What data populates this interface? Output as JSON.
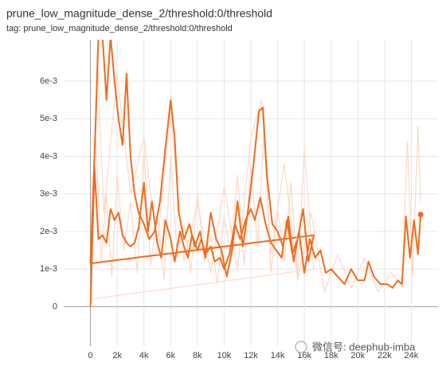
{
  "chart_data": {
    "type": "line",
    "title": "prune_low_magnitude_dense_2/threshold:0/threshold",
    "subtitle": "tag: prune_low_magnitude_dense_2/threshold:0/threshold",
    "watermark": "微信号: deephub-imba",
    "xlim": [
      -2000,
      26000
    ],
    "ylim": [
      -0.00105,
      0.0071
    ],
    "xticks": [
      0,
      {
        "value": 2000,
        "label": "2k"
      },
      {
        "value": 4000,
        "label": "4k"
      },
      {
        "value": 6000,
        "label": "6k"
      },
      {
        "value": 8000,
        "label": "8k"
      },
      {
        "value": 10000,
        "label": "10k"
      },
      {
        "value": 12000,
        "label": "12k"
      },
      {
        "value": 14000,
        "label": "14k"
      },
      {
        "value": 16000,
        "label": "16k"
      },
      {
        "value": 18000,
        "label": "18k"
      },
      {
        "value": 20000,
        "label": "20k"
      },
      {
        "value": 22000,
        "label": "22k"
      },
      {
        "value": 24000,
        "label": "24k"
      }
    ],
    "yticks": [
      0,
      {
        "value": 0.001,
        "label": "1e-3"
      },
      {
        "value": 0.002,
        "label": "2e-3"
      },
      {
        "value": 0.003,
        "label": "3e-3"
      },
      {
        "value": 0.004,
        "label": "4e-3"
      },
      {
        "value": 0.005,
        "label": "5e-3"
      },
      {
        "value": 0.006,
        "label": "6e-3"
      }
    ],
    "grid": true,
    "series": [
      {
        "color": "#fdd9c7",
        "x": [
          0,
          400,
          800,
          1200,
          1600,
          2000,
          2500,
          3000,
          3500,
          4000,
          4500,
          5000,
          5500,
          6000,
          6500,
          7000,
          7500,
          8000,
          8500,
          9000,
          9500,
          10000,
          10500,
          11000,
          11500,
          12000,
          12500,
          13000,
          13500,
          14000,
          14500,
          15000,
          15500,
          16000,
          16700,
          0,
          500,
          1000,
          2000,
          3000,
          4000,
          5000,
          6000,
          7000,
          8000,
          9000,
          10000,
          11000,
          12000,
          12800,
          13500,
          14500,
          15500,
          16500,
          17500,
          18500,
          19500,
          20500,
          21500,
          22500,
          23300,
          23700,
          24100,
          24500,
          24700
        ],
        "values": [
          0,
          0.0045,
          0.0012,
          0.003,
          0.0008,
          0.0035,
          0.0015,
          0.0028,
          0.0009,
          0.0042,
          0.0011,
          0.0025,
          0.0007,
          0.004,
          0.0013,
          0.0022,
          0.0009,
          0.003,
          0.0012,
          0.0019,
          0.0006,
          0.0024,
          0.0014,
          0.0035,
          0.0011,
          0.0038,
          0.0016,
          0.0048,
          0.0009,
          0.0026,
          0.0012,
          0.0033,
          0.0008,
          0.0042,
          0.001,
          0.0002,
          0.0068,
          0.0025,
          0.0062,
          0.003,
          0.0045,
          0.0016,
          0.0052,
          0.0012,
          0.0028,
          0.0009,
          0.0032,
          0.001,
          0.0045,
          0.0055,
          0.0014,
          0.0038,
          0.0007,
          0.0025,
          0.0004,
          0.0014,
          0.0005,
          0.0013,
          0.0004,
          0.0009,
          0.0005,
          0.0044,
          0.0008,
          0.0048,
          0.0028
        ]
      },
      {
        "color": "#f26b1d",
        "x": [
          0,
          300,
          600,
          900,
          1200,
          1500,
          1800,
          2100,
          2400,
          2700,
          3000,
          3300,
          3600,
          4000,
          4300,
          4600,
          5000,
          5300,
          5600,
          6000,
          6300,
          6700,
          7000,
          7300,
          7600,
          8000,
          8300,
          8600,
          9000,
          9300,
          9700,
          10000,
          10400,
          10800,
          11200,
          11600,
          12000,
          12300,
          12700,
          13100,
          13500,
          13900,
          14300,
          14700,
          15100,
          15500,
          15900,
          16300,
          16700,
          0,
          400,
          600,
          900,
          1200,
          1500,
          1800,
          2100,
          2400,
          2700,
          3000,
          3300,
          3600,
          4000,
          4400,
          4800,
          5200,
          5600,
          6000,
          6300,
          6600,
          7000,
          7400,
          7800,
          8200,
          8600,
          9000,
          9400,
          9800,
          10200,
          10600,
          11000,
          11400,
          11800,
          12200,
          12600,
          12900,
          13200,
          13600,
          14000,
          14400,
          14800,
          15200,
          15600,
          16000,
          16400,
          16800,
          17200,
          17600,
          18000,
          18500,
          19000,
          19500,
          20000,
          20500,
          20800,
          21200,
          21700,
          22200,
          22600,
          23000,
          23300,
          23600,
          23900,
          24200,
          24500,
          24700
        ],
        "values": [
          0,
          0.0037,
          0.0018,
          0.0019,
          0.0017,
          0.0026,
          0.0023,
          0.0025,
          0.0019,
          0.0017,
          0.0016,
          0.0017,
          0.0021,
          0.0033,
          0.002,
          0.0028,
          0.0017,
          0.0013,
          0.0023,
          0.0018,
          0.0012,
          0.002,
          0.0016,
          0.0013,
          0.0019,
          0.0015,
          0.0018,
          0.0014,
          0.0016,
          0.0012,
          0.0013,
          0.001,
          0.0014,
          0.0022,
          0.0018,
          0.0023,
          0.0026,
          0.0023,
          0.0029,
          0.0022,
          0.0017,
          0.0015,
          0.0013,
          0.0023,
          0.0014,
          0.0018,
          0.0026,
          0.0012,
          0.0019,
          0.00115,
          0.005,
          0.0072,
          0.0072,
          0.0055,
          0.0072,
          0.006,
          0.005,
          0.0043,
          0.0062,
          0.004,
          0.003,
          0.0025,
          0.0022,
          0.0018,
          0.002,
          0.0028,
          0.0042,
          0.0055,
          0.0045,
          0.0025,
          0.0018,
          0.0022,
          0.0016,
          0.002,
          0.0013,
          0.0025,
          0.0018,
          0.0015,
          0.0008,
          0.0015,
          0.0028,
          0.0016,
          0.0026,
          0.0038,
          0.0052,
          0.0053,
          0.0035,
          0.0022,
          0.002,
          0.0016,
          0.0024,
          0.0012,
          0.002,
          0.0009,
          0.0018,
          0.0013,
          0.0015,
          0.0009,
          0.001,
          0.0008,
          0.0006,
          0.001,
          0.0007,
          0.0007,
          0.0012,
          0.0008,
          0.0006,
          0.0006,
          0.0005,
          0.0007,
          0.0006,
          0.0024,
          0.0013,
          0.0023,
          0.0014,
          0.00245
        ]
      }
    ]
  }
}
